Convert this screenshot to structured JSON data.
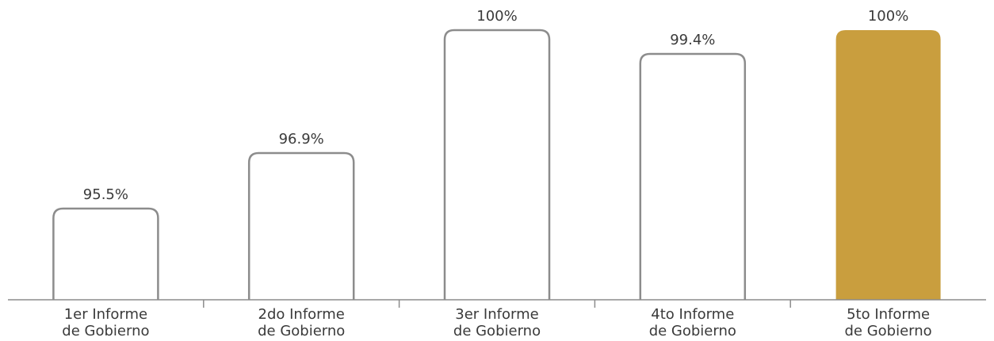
{
  "chart_data": {
    "type": "bar",
    "categories": [
      [
        "1er Informe",
        "de Gobierno"
      ],
      [
        "2do Informe",
        "de Gobierno"
      ],
      [
        "3er Informe",
        "de Gobierno"
      ],
      [
        "4to Informe",
        "de Gobierno"
      ],
      [
        "5to Informe",
        "de Gobierno"
      ]
    ],
    "values": [
      95.5,
      96.9,
      100,
      99.4,
      100
    ],
    "data_labels": [
      "95.5%",
      "96.9%",
      "100%",
      "99.4%",
      "100%"
    ],
    "highlight_index": 4,
    "ylim": [
      93.2,
      100
    ],
    "colors": {
      "outline": "#8c8c8c",
      "highlight": "#c99e3e",
      "axis": "#8c8c8c"
    },
    "grid": false,
    "legend": "none"
  }
}
